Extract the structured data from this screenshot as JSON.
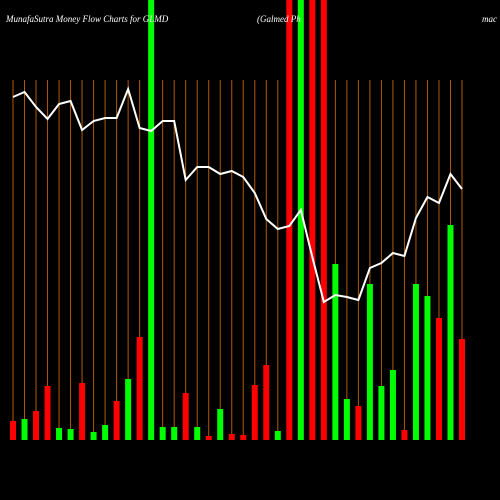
{
  "chart_data": {
    "type": "bar",
    "title": "MunafaSutra  Money Flow  Charts for GLMD",
    "subtitle": "(Galmed Ph",
    "subtitle_right": "mac",
    "categories": [
      null,
      null,
      null,
      null,
      null,
      null,
      null,
      null,
      null,
      null,
      null,
      null,
      null,
      null,
      null,
      null,
      null,
      null,
      null,
      null,
      null,
      null,
      null,
      null,
      null,
      null,
      null,
      null,
      null,
      null,
      null,
      null,
      null,
      null,
      null,
      null,
      null,
      null,
      null,
      null
    ],
    "values": [
      19,
      21,
      29,
      54,
      12,
      11,
      57,
      8,
      15,
      39,
      61,
      103,
      440,
      13,
      13,
      47,
      13,
      4,
      31,
      6,
      5,
      55,
      75,
      9,
      440,
      440,
      440,
      440,
      176,
      41,
      34,
      156,
      54,
      70,
      10,
      156,
      144,
      122,
      215,
      101
    ],
    "colors": [
      "#ff0000",
      "#00ff00",
      "#ff0000",
      "#ff0000",
      "#00ff00",
      "#00ff00",
      "#ff0000",
      "#00ff00",
      "#00ff00",
      "#ff0000",
      "#00ff00",
      "#ff0000",
      "#00ff00",
      "#00ff00",
      "#00ff00",
      "#ff0000",
      "#00ff00",
      "#ff0000",
      "#00ff00",
      "#ff0000",
      "#ff0000",
      "#ff0000",
      "#ff0000",
      "#00ff00",
      "#ff0000",
      "#00ff00",
      "#ff0000",
      "#ff0000",
      "#00ff00",
      "#00ff00",
      "#ff0000",
      "#00ff00",
      "#00ff00",
      "#00ff00",
      "#ff0000",
      "#00ff00",
      "#00ff00",
      "#ff0000",
      "#00ff00",
      "#ff0000"
    ],
    "line": {
      "color": "#ffffff",
      "values": [
        343,
        348,
        333,
        321,
        336,
        339,
        310,
        319,
        322,
        322,
        351,
        312,
        309,
        319,
        319,
        260,
        273,
        273,
        266,
        269,
        263,
        247,
        221,
        211,
        214,
        230,
        183,
        138,
        145,
        143,
        140,
        172,
        177,
        187,
        184,
        222,
        243,
        237,
        266,
        251
      ]
    },
    "ylim": [
      0,
      440
    ],
    "grid": true,
    "grid_color": "#b35900"
  }
}
